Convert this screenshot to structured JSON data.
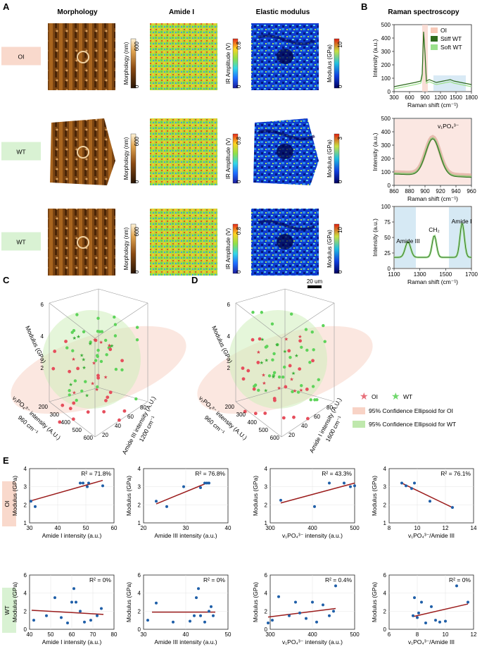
{
  "panels": {
    "A": {
      "letter": "A",
      "columns": [
        "Morphology",
        "Amide I",
        "Elastic modulus"
      ],
      "rows": [
        {
          "label": "OI",
          "label_color": "#f9d9cc",
          "morph_bar": {
            "label": "Morphology (nm)",
            "max": "600",
            "min": "0"
          },
          "amide_bar": {
            "label": "IR Amplitude (V)",
            "max": "0.8",
            "min": "0"
          },
          "mod_bar": {
            "label": "Modulus (GPa)",
            "max": "10",
            "min": "0"
          }
        },
        {
          "label": "WT",
          "label_color": "#d9f2d3",
          "morph_bar": {
            "label": "Morphology (nm)",
            "max": "600",
            "min": "0"
          },
          "amide_bar": {
            "label": "IR Amplitude (V)",
            "max": "0.8",
            "min": "0"
          },
          "mod_bar": {
            "label": "Modulus (GPa)",
            "max": "3",
            "min": "0"
          }
        },
        {
          "label": "WT",
          "label_color": "#d9f2d3",
          "morph_bar": {
            "label": "Morphology (nm)",
            "max": "600",
            "min": "0"
          },
          "amide_bar": {
            "label": "IR Amplitude (V)",
            "max": "0.8",
            "min": "0"
          },
          "mod_bar": {
            "label": "Modulus (GPa)",
            "max": "10",
            "min": "0"
          }
        }
      ],
      "scalebar": "20 um"
    },
    "B": {
      "letter": "B",
      "title": "Raman spectroscopy",
      "legend": [
        "OI",
        "Stiff WT",
        "Soft WT"
      ],
      "legend_colors": [
        "#f7c9b8",
        "#2e6b1d",
        "#9be08b"
      ],
      "plots": [
        {
          "ylabel": "Intensity (a.u.)",
          "xlabel": "Raman shift (cm⁻¹)",
          "xticks": [
            "300",
            "600",
            "900",
            "1200",
            "1500",
            "1800"
          ],
          "yticks": [
            "0",
            "100",
            "200",
            "300",
            "400",
            "500"
          ]
        },
        {
          "ylabel": "Intensity (a.u.)",
          "xlabel": "Raman shift (cm⁻¹)",
          "xticks": [
            "860",
            "880",
            "900",
            "920",
            "940",
            "960"
          ],
          "yticks": [
            "0",
            "100",
            "200",
            "300",
            "400",
            "500"
          ],
          "annotation": "v₁PO₄³⁻"
        },
        {
          "ylabel": "Intensity (a.u.)",
          "xlabel": "Raman shift (cm⁻¹)",
          "xticks": [
            "1100",
            "1300",
            "1500",
            "1700"
          ],
          "yticks": [
            "0",
            "25",
            "50",
            "75",
            "100"
          ],
          "annotations": [
            "Amide III",
            "CH₂",
            "Amide I"
          ]
        }
      ]
    },
    "C": {
      "letter": "C",
      "zlabel": "Modulus (GPa)",
      "zticks": [
        "2",
        "4",
        "6"
      ],
      "xlabel": "v₁PO₄³⁻ intensity (A.U.)",
      "xsub": "960 cm⁻¹",
      "xticks": [
        "200",
        "300",
        "400",
        "500",
        "600"
      ],
      "ylabel": "Amide III intensity (A.U.)",
      "ysub": "1200 cm⁻¹",
      "yticks": [
        "20",
        "40",
        "60",
        "80"
      ]
    },
    "D": {
      "letter": "D",
      "zlabel": "Modulus (GPa)",
      "zticks": [
        "2",
        "4",
        "6"
      ],
      "xlabel": "v₁PO₄³⁻ intensity (A.U.)",
      "xsub": "960 cm⁻¹",
      "xticks": [
        "200",
        "300",
        "400",
        "500",
        "600"
      ],
      "ylabel": "Amide I intensity (A.U.)",
      "ysub": "1600 cm⁻¹",
      "yticks": [
        "20",
        "40",
        "60",
        "80"
      ],
      "legend": [
        {
          "label": "OI",
          "color": "#e8707b",
          "kind": "star"
        },
        {
          "label": "WT",
          "color": "#6fd86b",
          "kind": "star"
        },
        {
          "label": "95% Confidence Ellipsoid for OI",
          "color": "#f8d3c6",
          "kind": "swatch"
        },
        {
          "label": "95% Confidence Ellipsoid for WT",
          "color": "#bfe8ad",
          "kind": "swatch"
        }
      ]
    },
    "E": {
      "letter": "E",
      "rows": [
        {
          "label": "OI",
          "label_color": "#f9d9cc"
        },
        {
          "label": "WT",
          "label_color": "#d9f2d3"
        }
      ]
    }
  },
  "chart_data": [
    {
      "type": "scatter",
      "panel": "E",
      "row": "OI",
      "title": "",
      "xlabel": "Amide I intensity (a.u.)",
      "ylabel": "Modulus (GPa)",
      "xlim": [
        30,
        60
      ],
      "ylim": [
        1,
        4
      ],
      "xticks": [
        30,
        40,
        50,
        60
      ],
      "yticks": [
        1,
        2,
        3,
        4
      ],
      "annotation": "R² = 71.8%",
      "x": [
        30.5,
        32,
        48,
        49,
        50.5,
        51,
        56
      ],
      "y": [
        2.2,
        1.9,
        3.2,
        3.2,
        3.0,
        3.2,
        3.05
      ],
      "fit": [
        [
          30,
          2.2
        ],
        [
          56,
          3.35
        ]
      ]
    },
    {
      "type": "scatter",
      "panel": "E",
      "row": "OI",
      "title": "",
      "xlabel": "Amide III intensity (a.u.)",
      "ylabel": "Modulus (GPa)",
      "xlim": [
        20,
        40
      ],
      "ylim": [
        1,
        4
      ],
      "xticks": [
        20,
        30,
        40
      ],
      "yticks": [
        1,
        2,
        3,
        4
      ],
      "annotation": "R² = 76.8%",
      "x": [
        23,
        25.5,
        29.5,
        33.5,
        34.5,
        35,
        35.5
      ],
      "y": [
        2.2,
        1.9,
        3.0,
        2.95,
        3.2,
        3.2,
        3.2
      ],
      "fit": [
        [
          23,
          2.05
        ],
        [
          35.5,
          3.25
        ]
      ]
    },
    {
      "type": "scatter",
      "panel": "E",
      "row": "OI",
      "title": "",
      "xlabel": "v₁PO₄³⁻ intensity (a.u.)",
      "ylabel": "Modulus (GPa)",
      "xlim": [
        300,
        500
      ],
      "ylim": [
        1,
        4
      ],
      "xticks": [
        300,
        400,
        500
      ],
      "yticks": [
        1,
        2,
        3,
        4
      ],
      "annotation": "R² = 43.3%",
      "x": [
        325,
        405,
        440,
        475,
        490,
        500
      ],
      "y": [
        2.25,
        1.9,
        3.2,
        3.2,
        3.0,
        3.05
      ],
      "fit": [
        [
          325,
          2.1
        ],
        [
          500,
          3.2
        ]
      ]
    },
    {
      "type": "scatter",
      "panel": "E",
      "row": "OI",
      "title": "",
      "xlabel": "v₁PO₄³⁻/Amide III",
      "ylabel": "Modulus (GPa)",
      "xlim": [
        8,
        14
      ],
      "ylim": [
        1,
        4
      ],
      "xticks": [
        8,
        10,
        12,
        14
      ],
      "yticks": [
        1,
        2,
        3,
        4
      ],
      "annotation": "R² = 76.1%",
      "x": [
        8.9,
        9.2,
        9.6,
        9.8,
        10.9,
        12.5
      ],
      "y": [
        3.2,
        3.05,
        2.9,
        3.2,
        2.2,
        1.85
      ],
      "fit": [
        [
          8.9,
          3.2
        ],
        [
          12.5,
          1.85
        ]
      ]
    },
    {
      "type": "scatter",
      "panel": "E",
      "row": "WT",
      "title": "",
      "xlabel": "Amide I intensity (a.u.)",
      "ylabel": "Modulus (GPa)",
      "xlim": [
        40,
        80
      ],
      "ylim": [
        0,
        6
      ],
      "xticks": [
        40,
        50,
        60,
        70,
        80
      ],
      "yticks": [
        0,
        2,
        4,
        6
      ],
      "annotation": "R² = 0%",
      "x": [
        42,
        48,
        52,
        55,
        58,
        60,
        61,
        62,
        64,
        66,
        69,
        72,
        74
      ],
      "y": [
        1.0,
        1.5,
        3.5,
        1.3,
        0.7,
        3.0,
        4.5,
        3.0,
        2.0,
        0.8,
        1.0,
        1.5,
        2.3
      ],
      "fit": [
        [
          41,
          2.1
        ],
        [
          75,
          1.65
        ]
      ]
    },
    {
      "type": "scatter",
      "panel": "E",
      "row": "WT",
      "title": "",
      "xlabel": "Amide III intensity (a.u.)",
      "ylabel": "Modulus (GPa)",
      "xlim": [
        30,
        50
      ],
      "ylim": [
        0,
        6
      ],
      "xticks": [
        30,
        40,
        50
      ],
      "yticks": [
        0,
        2,
        4,
        6
      ],
      "annotation": "R² = 0%",
      "x": [
        31,
        33,
        37,
        41,
        42,
        42.5,
        43,
        43.5,
        44.5,
        45.5,
        46,
        46.5
      ],
      "y": [
        1.0,
        2.9,
        0.8,
        0.9,
        1.5,
        3.5,
        4.5,
        1.5,
        0.8,
        2.0,
        2.5,
        1.5
      ],
      "fit": [
        [
          32,
          1.9
        ],
        [
          47,
          1.9
        ]
      ]
    },
    {
      "type": "scatter",
      "panel": "E",
      "row": "WT",
      "title": "",
      "xlabel": "v₁PO₄³⁻ intensity (a.u.)",
      "ylabel": "Modulus (GPa)",
      "xlim": [
        300,
        500
      ],
      "ylim": [
        0,
        6
      ],
      "xticks": [
        300,
        400,
        500
      ],
      "yticks": [
        0,
        2,
        4,
        6
      ],
      "annotation": "R² = 0.4%",
      "x": [
        295,
        305,
        320,
        345,
        360,
        370,
        385,
        400,
        410,
        425,
        440,
        450,
        455
      ],
      "y": [
        0.7,
        1.0,
        3.6,
        1.5,
        3.0,
        1.8,
        1.2,
        3.0,
        0.8,
        2.7,
        1.5,
        2.0,
        4.8
      ],
      "fit": [
        [
          295,
          1.35
        ],
        [
          455,
          2.3
        ]
      ]
    },
    {
      "type": "scatter",
      "panel": "E",
      "row": "WT",
      "title": "",
      "xlabel": "v₁PO₄³⁻/Amide III",
      "ylabel": "Modulus (GPa)",
      "xlim": [
        6,
        12
      ],
      "ylim": [
        0,
        6
      ],
      "xticks": [
        6,
        8,
        10,
        12
      ],
      "yticks": [
        0,
        2,
        4,
        6
      ],
      "annotation": "R² = 0%",
      "x": [
        7.7,
        7.8,
        8.0,
        8.1,
        8.3,
        8.6,
        9.0,
        9.3,
        9.6,
        10.0,
        10.8,
        11.6
      ],
      "y": [
        1.5,
        3.5,
        1.3,
        1.8,
        3.0,
        0.7,
        2.5,
        1.0,
        0.8,
        0.9,
        4.8,
        3.0
      ],
      "fit": [
        [
          7.7,
          1.4
        ],
        [
          11.6,
          2.8
        ]
      ]
    }
  ]
}
